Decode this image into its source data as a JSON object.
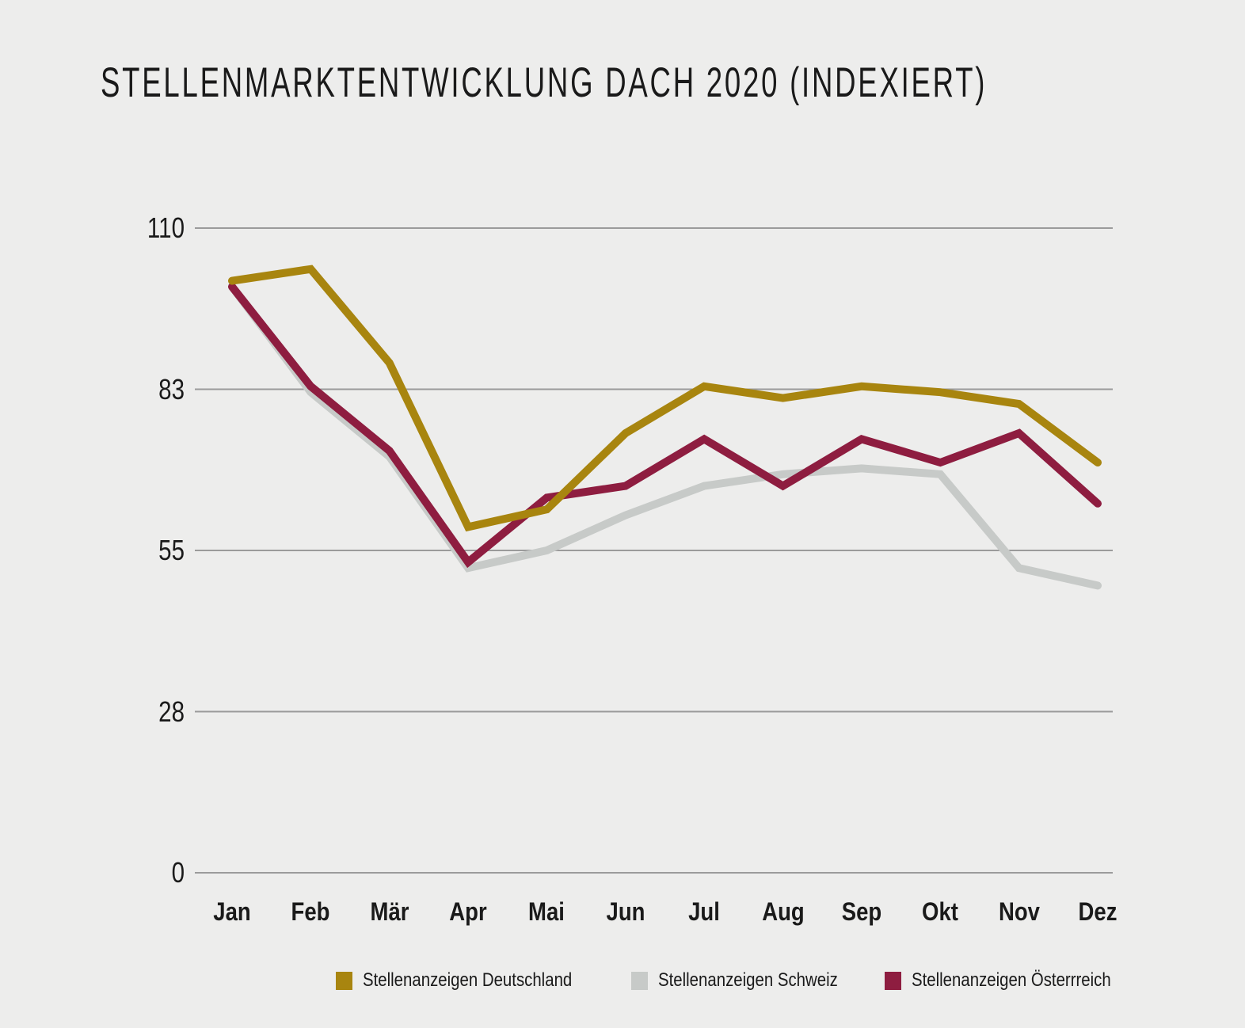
{
  "title": "STELLENMARKTENTWICKLUNG DACH 2020 (INDEXIERT)",
  "chart_data": {
    "type": "line",
    "title": "STELLENMARKTENTWICKLUNG DACH 2020 (INDEXIERT)",
    "categories": [
      "Jan",
      "Feb",
      "Mär",
      "Apr",
      "Mai",
      "Jun",
      "Jul",
      "Aug",
      "Sep",
      "Okt",
      "Nov",
      "Dez"
    ],
    "series": [
      {
        "name": "Stellenanzeigen Deutschland",
        "color": "#A8850F",
        "values": [
          101,
          103,
          87,
          59,
          62,
          75,
          83,
          81,
          83,
          82,
          80,
          70
        ]
      },
      {
        "name": "Stellenanzeigen Schweiz",
        "color": "#C7CAC8",
        "values": [
          100,
          82,
          71,
          52,
          55,
          61,
          66,
          68,
          69,
          68,
          52,
          49
        ]
      },
      {
        "name": "Stellenanzeigen Österrreich",
        "color": "#8E1D40",
        "values": [
          100,
          83,
          72,
          53,
          64,
          66,
          74,
          66,
          74,
          70,
          75,
          63
        ]
      }
    ],
    "ylim": [
      0,
      110
    ],
    "yticks": [
      {
        "value": 0,
        "label": "0"
      },
      {
        "value": 27.5,
        "label": "28"
      },
      {
        "value": 55,
        "label": "55"
      },
      {
        "value": 82.5,
        "label": "83"
      },
      {
        "value": 110,
        "label": "110"
      }
    ],
    "xlabel": "",
    "ylabel": "",
    "grid": "horizontal",
    "legend_position": "bottom"
  },
  "colors": {
    "background": "#EDEDEC",
    "gridline": "#9B9B9B",
    "text": "#1A1A1A"
  }
}
